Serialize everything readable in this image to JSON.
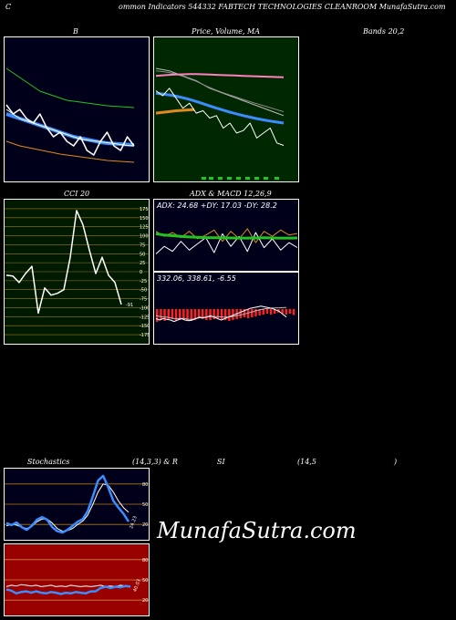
{
  "header": {
    "c": "C",
    "text": "ommon Indicators 544332 FABTECH TECHNOLOGIES CLEANROOM MunafaSutra.com"
  },
  "top_labels": {
    "b": "B",
    "price": "Price, Volume, MA",
    "bands": "Bands 20,2",
    "cci": "CCI 20",
    "adx_macd": "ADX & MACD 12,26,9",
    "stoch_a": "Stochastics",
    "stoch_b": "(14,3,3) & R",
    "stoch_c": "SI",
    "stoch_d": "(14,5",
    "stoch_e": ")"
  },
  "brand": "MunafaSutra.com",
  "colors": {
    "bollinger_bg": "#00001a",
    "price_bg": "#002800",
    "cci_bg": "#001a00",
    "adx_bg": "#00001a",
    "stoch_bg": "#00001a",
    "rsi_bg": "#990000",
    "blue": "#3b8cff",
    "orange": "#e08a1e",
    "green": "#22c422",
    "pink": "#ff7fbf"
  },
  "chart_data": [
    {
      "type": "line",
      "name": "bollinger-bands",
      "series": [
        {
          "role": "price",
          "values": [
            98,
            96,
            97,
            95,
            94,
            96,
            93,
            91,
            92,
            90,
            89,
            91,
            88,
            87,
            90,
            92,
            89,
            88,
            91,
            89
          ]
        },
        {
          "role": "middle",
          "values": [
            96,
            95.5,
            95,
            94.5,
            94,
            93.5,
            93,
            92.5,
            92,
            91.5,
            91,
            90.7,
            90.4,
            90.1,
            89.8,
            89.6,
            89.5,
            89.4,
            89.3,
            89.2
          ]
        },
        {
          "role": "upper",
          "values": [
            106,
            105,
            104,
            103,
            102,
            101,
            100.5,
            100,
            99.5,
            99,
            98.8,
            98.6,
            98.4,
            98.2,
            98,
            97.8,
            97.7,
            97.6,
            97.5,
            97.4
          ]
        },
        {
          "role": "lower",
          "values": [
            90,
            89.5,
            89,
            88.7,
            88.4,
            88.1,
            87.8,
            87.5,
            87.2,
            87,
            86.8,
            86.6,
            86.4,
            86.2,
            86,
            85.8,
            85.7,
            85.6,
            85.5,
            85.4
          ]
        },
        {
          "role": "ma-white",
          "values": [
            97,
            96,
            95,
            94.5,
            94,
            93.5,
            93,
            92.5,
            92,
            91.5,
            91,
            90.5,
            90.3,
            90.1,
            89.9,
            89.7,
            89.5,
            89.3,
            89.1,
            89
          ]
        }
      ],
      "ylim": [
        82,
        112
      ]
    },
    {
      "type": "line",
      "name": "price-volume-ma",
      "series": [
        {
          "role": "price",
          "values": [
            95,
            93,
            96,
            92,
            88,
            90,
            86,
            87,
            84,
            85,
            80,
            82,
            78,
            79,
            82,
            76,
            78,
            80,
            74,
            73
          ]
        },
        {
          "role": "ma-pink",
          "values": [
            101,
            101.2,
            101.4,
            101.5,
            101.6,
            101.7,
            101.7,
            101.6,
            101.5,
            101.4,
            101.3,
            101.2,
            101.1,
            101,
            100.9,
            100.8,
            100.7,
            100.6,
            100.5,
            100.4
          ]
        },
        {
          "role": "ma-gray1",
          "values": [
            104,
            103.5,
            103,
            102,
            101,
            100,
            99,
            97.5,
            96,
            95,
            94,
            93,
            92,
            91,
            90,
            89,
            88,
            87,
            86,
            85
          ]
        },
        {
          "role": "ma-gray2",
          "values": [
            103,
            102.7,
            102.3,
            101.6,
            100.8,
            99.8,
            98.8,
            97.5,
            96.3,
            95.2,
            94.2,
            93.3,
            92.4,
            91.5,
            90.6,
            89.8,
            89,
            88.2,
            87.4,
            86.6
          ]
        },
        {
          "role": "ma-blue",
          "values": [
            94,
            93.7,
            93.3,
            92.8,
            92.2,
            91.5,
            90.7,
            89.8,
            88.9,
            88,
            87.2,
            86.4,
            85.7,
            85,
            84.4,
            83.8,
            83.3,
            82.8,
            82.4,
            82
          ]
        },
        {
          "role": "ma-orange",
          "values": [
            86,
            86.2,
            86.4,
            86.6,
            86.8,
            87,
            87.1,
            87.2,
            87.3,
            87.4
          ]
        }
      ],
      "ylim": [
        60,
        115
      ]
    },
    {
      "type": "line",
      "name": "cci",
      "ticks": [
        "175",
        "150",
        "125",
        "100",
        "75",
        "50",
        "25",
        "0",
        "-25",
        "-50",
        "-75",
        "-100",
        "-125",
        "-150",
        "-175"
      ],
      "last_label": "-91",
      "values": [
        -10,
        -12,
        -30,
        -5,
        15,
        -115,
        -45,
        -65,
        -60,
        -50,
        40,
        170,
        130,
        60,
        -5,
        40,
        -10,
        -30,
        -91
      ],
      "ylim": [
        -190,
        190
      ]
    },
    {
      "type": "line",
      "name": "adx",
      "label": "ADX: 24.68  +DY: 17.03 -DY: 28.2",
      "series": [
        {
          "role": "adx",
          "values": [
            28,
            27,
            26.5,
            26,
            25.5,
            25.2,
            25,
            24.9,
            24.8,
            24.7,
            24.6,
            24.6,
            24.7,
            24.8,
            24.7,
            24.6,
            24.6,
            24.68
          ]
        },
        {
          "role": "plus-di",
          "values": [
            12,
            18,
            14,
            22,
            15,
            20,
            25,
            13,
            28,
            18,
            26,
            14,
            29,
            17,
            24,
            15,
            21,
            17.03
          ]
        },
        {
          "role": "minus-di",
          "values": [
            30,
            26,
            29,
            25,
            30,
            24,
            27,
            31,
            22,
            30,
            24,
            32,
            21,
            30,
            26,
            31,
            27,
            28.2
          ]
        }
      ],
      "ylim": [
        0,
        45
      ]
    },
    {
      "type": "bar",
      "name": "macd",
      "label": "332.06,  338.61,  -6.55",
      "histogram": [
        -14,
        -12,
        -13,
        -12,
        -11,
        -13,
        -12,
        -11,
        -12,
        -13,
        -12,
        -10,
        -11,
        -12,
        -12,
        -11,
        -10,
        -11,
        -12,
        -13,
        -12,
        -11,
        -10,
        -9,
        -10,
        -9,
        -8,
        -7,
        -6,
        -5,
        -6,
        -5,
        -4,
        -5,
        -6,
        -5,
        -6.55
      ],
      "macd": [
        331,
        330,
        331,
        330.5,
        330,
        329,
        330,
        331,
        330,
        329.5,
        330,
        331,
        332,
        331.5,
        332,
        333,
        332,
        331,
        330,
        331,
        332,
        333,
        334,
        335,
        336,
        337,
        338,
        338.5,
        339,
        339.5,
        339,
        338.5,
        338,
        337,
        336,
        334,
        332.06
      ],
      "signal": [
        333,
        332.5,
        332,
        332,
        331.5,
        331,
        331,
        331,
        331,
        330.5,
        330.5,
        331,
        331.5,
        331.8,
        332,
        332.3,
        332.4,
        332.3,
        332.1,
        332,
        332.1,
        332.4,
        332.8,
        333.3,
        333.9,
        334.5,
        335.2,
        335.9,
        336.6,
        337.2,
        337.7,
        338,
        338.2,
        338.3,
        338.4,
        338.5,
        338.61
      ],
      "ylim": [
        315,
        345
      ]
    },
    {
      "type": "line",
      "name": "stochastics",
      "level_labels": [
        "80",
        "50",
        "20"
      ],
      "last_label": "24.23",
      "series": [
        {
          "role": "k",
          "values": [
            22,
            19,
            23,
            16,
            12,
            18,
            27,
            31,
            27,
            16,
            10,
            8,
            12,
            18,
            24,
            28,
            40,
            62,
            85,
            92,
            75,
            55,
            45,
            36,
            24.23
          ]
        },
        {
          "role": "d",
          "values": [
            18,
            20,
            19,
            16,
            14,
            17,
            24,
            28,
            28,
            22,
            14,
            10,
            11,
            14,
            20,
            25,
            34,
            50,
            68,
            80,
            78,
            68,
            55,
            45,
            38
          ]
        }
      ],
      "ylim": [
        0,
        100
      ]
    },
    {
      "type": "line",
      "name": "rsi",
      "level_labels": [
        "80",
        "50",
        "20"
      ],
      "last_label": "40.03",
      "series": [
        {
          "role": "rsi",
          "values": [
            36,
            34,
            30,
            32,
            33,
            31,
            33,
            31,
            30,
            32,
            31,
            29,
            31,
            30,
            32,
            31,
            30,
            33,
            33,
            38,
            40,
            38,
            40,
            39,
            41,
            40.03
          ]
        },
        {
          "role": "mfi",
          "values": [
            40,
            42,
            41,
            43,
            42,
            41,
            42,
            40,
            41,
            42,
            40,
            41,
            40,
            42,
            41,
            40,
            41,
            40,
            41,
            42,
            40,
            41,
            40,
            42,
            41,
            40
          ]
        }
      ],
      "ylim": [
        0,
        100
      ]
    }
  ]
}
